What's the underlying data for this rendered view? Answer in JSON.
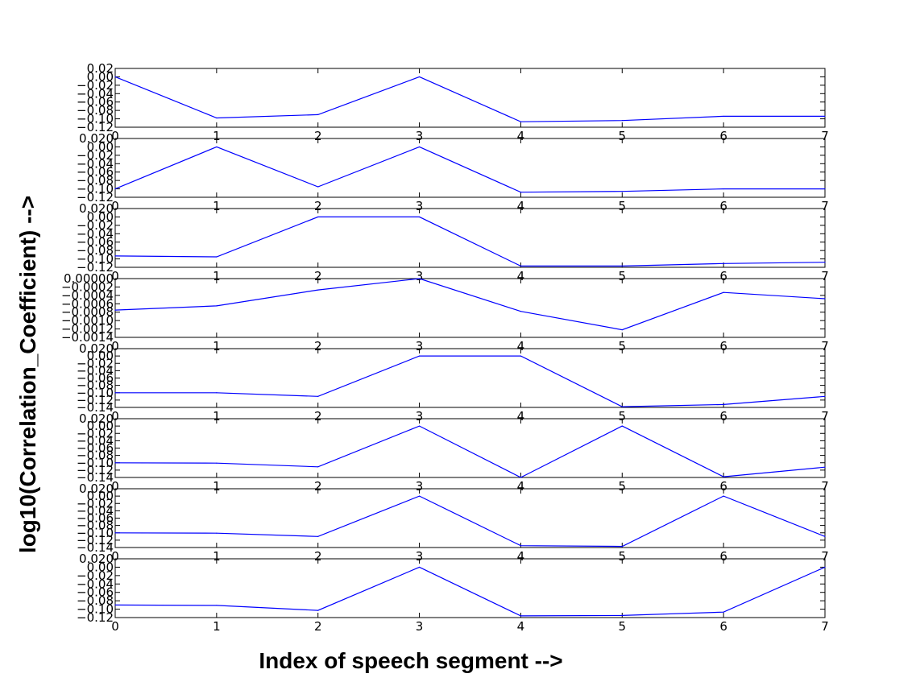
{
  "chart_data": {
    "type": "line",
    "xlabel": "Index of speech segment -->",
    "ylabel": "log10(Correlation_Coefficient) -->",
    "grid": false,
    "line_color": "#0000ff",
    "x": [
      0,
      1,
      2,
      3,
      4,
      5,
      6,
      7
    ],
    "xlim": [
      0,
      7
    ],
    "x_tick_labels": [
      "0",
      "1",
      "2",
      "3",
      "4",
      "5",
      "6",
      "7"
    ],
    "subplots": [
      {
        "ylim": [
          -0.12,
          0.02
        ],
        "y_tick_labels": [
          "0.02",
          "0.00",
          "−0.02",
          "−0.04",
          "−0.06",
          "−0.08",
          "−0.10",
          "−0.12"
        ],
        "values": [
          0.0,
          -0.098,
          -0.09,
          0.0,
          -0.107,
          -0.104,
          -0.094,
          -0.094
        ]
      },
      {
        "ylim": [
          -0.12,
          0.02
        ],
        "y_tick_labels": [
          "0.020",
          "0.00",
          "−0.02",
          "−0.04",
          "−0.06",
          "−0.08",
          "−0.10",
          "−0.12"
        ],
        "values": [
          -0.1,
          0.0,
          -0.095,
          0.0,
          -0.108,
          -0.106,
          -0.1,
          -0.1
        ]
      },
      {
        "ylim": [
          -0.12,
          0.02
        ],
        "y_tick_labels": [
          "0.020",
          "0.00",
          "−0.02",
          "−0.04",
          "−0.06",
          "−0.08",
          "−0.10",
          "−0.12"
        ],
        "values": [
          -0.093,
          -0.095,
          0.0,
          0.0,
          -0.117,
          -0.117,
          -0.111,
          -0.108
        ]
      },
      {
        "ylim": [
          -0.0014,
          0.0
        ],
        "y_tick_labels": [
          "0.00000",
          "−0.0002",
          "−0.0004",
          "−0.0006",
          "−0.0008",
          "−0.0010",
          "−0.0012",
          "−0.0014"
        ],
        "values": [
          -0.00075,
          -0.00065,
          -0.00027,
          0.0,
          -0.00078,
          -0.00122,
          -0.00033,
          -0.00048
        ]
      },
      {
        "ylim": [
          -0.14,
          0.02
        ],
        "y_tick_labels": [
          "0.020",
          "0.00",
          "−0.02",
          "−0.04",
          "−0.06",
          "−0.08",
          "−0.10",
          "−0.12",
          "−0.14"
        ],
        "values": [
          -0.1,
          -0.1,
          -0.11,
          0.0,
          0.0,
          -0.138,
          -0.132,
          -0.11
        ]
      },
      {
        "ylim": [
          -0.14,
          0.02
        ],
        "y_tick_labels": [
          "0.020",
          "0.00",
          "−0.02",
          "−0.04",
          "−0.06",
          "−0.08",
          "−0.10",
          "−0.12",
          "−0.14"
        ],
        "values": [
          -0.1,
          -0.101,
          -0.111,
          0.0,
          -0.14,
          0.0,
          -0.138,
          -0.112
        ]
      },
      {
        "ylim": [
          -0.14,
          0.02
        ],
        "y_tick_labels": [
          "0.020",
          "0.00",
          "−0.02",
          "−0.04",
          "−0.06",
          "−0.08",
          "−0.10",
          "−0.12",
          "−0.14"
        ],
        "values": [
          -0.1,
          -0.101,
          -0.11,
          0.0,
          -0.135,
          -0.137,
          0.0,
          -0.11
        ]
      },
      {
        "ylim": [
          -0.12,
          0.02
        ],
        "y_tick_labels": [
          "0.020",
          "0.00",
          "−0.02",
          "−0.04",
          "−0.06",
          "−0.08",
          "−0.10",
          "−0.12"
        ],
        "values": [
          -0.09,
          -0.091,
          -0.103,
          0.0,
          -0.116,
          -0.115,
          -0.107,
          0.0
        ]
      }
    ]
  }
}
